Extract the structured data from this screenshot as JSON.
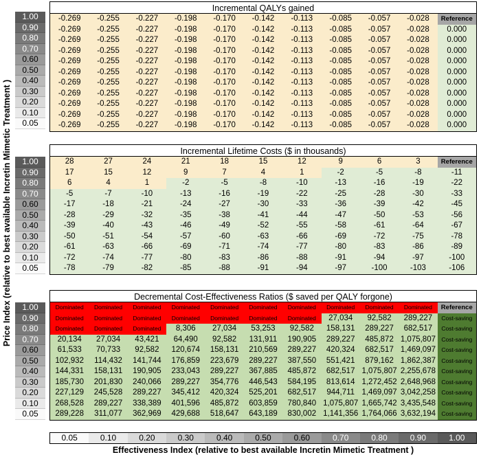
{
  "y_axis_label": "Price Index (relative to best available Incretin Mimetic Treatment )",
  "x_axis_label": "Effectiveness Index (relative to best available Incretin Mimetic Treatment )",
  "price_index": [
    "1.00",
    "0.90",
    "0.80",
    "0.70",
    "0.60",
    "0.50",
    "0.40",
    "0.30",
    "0.20",
    "0.10",
    "0.05"
  ],
  "effectiveness_index": [
    "0.05",
    "0.10",
    "0.20",
    "0.30",
    "0.40",
    "0.50",
    "0.60",
    "0.70",
    "0.80",
    "0.90",
    "1.00"
  ],
  "colors": {
    "yellow": "#fbeccb",
    "green_light": "#e0ecd5",
    "green_mid": "#c6ddb0",
    "green_dark": "#4e7b30",
    "red": "#ff0000",
    "gray": "#a6a6a6"
  },
  "chart_data": [
    {
      "type": "table",
      "title": "Incremental QALYs gained",
      "reference_label": "Reference",
      "rows": [
        [
          "-0.269",
          "-0.255",
          "-0.227",
          "-0.198",
          "-0.170",
          "-0.142",
          "-0.113",
          "-0.085",
          "-0.057",
          "-0.028",
          "Reference"
        ],
        [
          "-0.269",
          "-0.255",
          "-0.227",
          "-0.198",
          "-0.170",
          "-0.142",
          "-0.113",
          "-0.085",
          "-0.057",
          "-0.028",
          "0.000"
        ],
        [
          "-0.269",
          "-0.255",
          "-0.227",
          "-0.198",
          "-0.170",
          "-0.142",
          "-0.113",
          "-0.085",
          "-0.057",
          "-0.028",
          "0.000"
        ],
        [
          "-0.269",
          "-0.255",
          "-0.227",
          "-0.198",
          "-0.170",
          "-0.142",
          "-0.113",
          "-0.085",
          "-0.057",
          "-0.028",
          "0.000"
        ],
        [
          "-0.269",
          "-0.255",
          "-0.227",
          "-0.198",
          "-0.170",
          "-0.142",
          "-0.113",
          "-0.085",
          "-0.057",
          "-0.028",
          "0.000"
        ],
        [
          "-0.269",
          "-0.255",
          "-0.227",
          "-0.198",
          "-0.170",
          "-0.142",
          "-0.113",
          "-0.085",
          "-0.057",
          "-0.028",
          "0.000"
        ],
        [
          "-0.269",
          "-0.255",
          "-0.227",
          "-0.198",
          "-0.170",
          "-0.142",
          "-0.113",
          "-0.085",
          "-0.057",
          "-0.028",
          "0.000"
        ],
        [
          "-0.269",
          "-0.255",
          "-0.227",
          "-0.198",
          "-0.170",
          "-0.142",
          "-0.113",
          "-0.085",
          "-0.057",
          "-0.028",
          "0.000"
        ],
        [
          "-0.269",
          "-0.255",
          "-0.227",
          "-0.198",
          "-0.170",
          "-0.142",
          "-0.113",
          "-0.085",
          "-0.057",
          "-0.028",
          "0.000"
        ],
        [
          "-0.269",
          "-0.255",
          "-0.227",
          "-0.198",
          "-0.170",
          "-0.142",
          "-0.113",
          "-0.085",
          "-0.057",
          "-0.028",
          "0.000"
        ],
        [
          "-0.269",
          "-0.255",
          "-0.227",
          "-0.198",
          "-0.170",
          "-0.142",
          "-0.113",
          "-0.085",
          "-0.057",
          "-0.028",
          "0.000"
        ]
      ]
    },
    {
      "type": "table",
      "title": "Incremental Lifetime Costs ($ in thousands)",
      "reference_label": "Reference",
      "rows": [
        [
          "28",
          "27",
          "24",
          "21",
          "18",
          "15",
          "12",
          "9",
          "6",
          "3",
          "Reference"
        ],
        [
          "17",
          "15",
          "12",
          "9",
          "7",
          "4",
          "1",
          "-2",
          "-5",
          "-8",
          "-11"
        ],
        [
          "6",
          "4",
          "1",
          "-2",
          "-5",
          "-8",
          "-10",
          "-13",
          "-16",
          "-19",
          "-22"
        ],
        [
          "-5",
          "-7",
          "-10",
          "-13",
          "-16",
          "-19",
          "-22",
          "-25",
          "-28",
          "-30",
          "-33"
        ],
        [
          "-17",
          "-18",
          "-21",
          "-24",
          "-27",
          "-30",
          "-33",
          "-36",
          "-39",
          "-42",
          "-45"
        ],
        [
          "-28",
          "-29",
          "-32",
          "-35",
          "-38",
          "-41",
          "-44",
          "-47",
          "-50",
          "-53",
          "-56"
        ],
        [
          "-39",
          "-40",
          "-43",
          "-46",
          "-49",
          "-52",
          "-55",
          "-58",
          "-61",
          "-64",
          "-67"
        ],
        [
          "-50",
          "-51",
          "-54",
          "-57",
          "-60",
          "-63",
          "-66",
          "-69",
          "-72",
          "-75",
          "-78"
        ],
        [
          "-61",
          "-63",
          "-66",
          "-69",
          "-71",
          "-74",
          "-77",
          "-80",
          "-83",
          "-86",
          "-89"
        ],
        [
          "-72",
          "-74",
          "-77",
          "-80",
          "-83",
          "-86",
          "-88",
          "-91",
          "-94",
          "-97",
          "-100"
        ],
        [
          "-78",
          "-79",
          "-82",
          "-85",
          "-88",
          "-91",
          "-94",
          "-97",
          "-100",
          "-103",
          "-106"
        ]
      ]
    },
    {
      "type": "table",
      "title": "Decremental Cost-Effectiveness Ratios ($ saved per QALY forgone)",
      "reference_label": "Reference",
      "rows": [
        [
          "Dominated",
          "Dominated",
          "Dominated",
          "Dominated",
          "Dominated",
          "Dominated",
          "Dominated",
          "Dominated",
          "Dominated",
          "Dominated",
          "Reference"
        ],
        [
          "Dominated",
          "Dominated",
          "Dominated",
          "Dominated",
          "Dominated",
          "Dominated",
          "Dominated",
          "27,034",
          "92,582",
          "289,227",
          "Cost-saving"
        ],
        [
          "Dominated",
          "Dominated",
          "Dominated",
          "8,306",
          "27,034",
          "53,253",
          "92,582",
          "158,131",
          "289,227",
          "682,517",
          "Cost-saving"
        ],
        [
          "20,134",
          "27,034",
          "43,421",
          "64,490",
          "92,582",
          "131,911",
          "190,905",
          "289,227",
          "485,872",
          "1,075,807",
          "Cost-saving"
        ],
        [
          "61,533",
          "70,733",
          "92,582",
          "120,674",
          "158,131",
          "210,569",
          "289,227",
          "420,324",
          "682,517",
          "1,469,097",
          "Cost-saving"
        ],
        [
          "102,932",
          "114,432",
          "141,744",
          "176,859",
          "223,679",
          "289,227",
          "387,550",
          "551,421",
          "879,162",
          "1,862,387",
          "Cost-saving"
        ],
        [
          "144,331",
          "158,131",
          "190,905",
          "233,043",
          "289,227",
          "367,885",
          "485,872",
          "682,517",
          "1,075,807",
          "2,255,678",
          "Cost-saving"
        ],
        [
          "185,730",
          "201,830",
          "240,066",
          "289,227",
          "354,776",
          "446,543",
          "584,195",
          "813,614",
          "1,272,452",
          "2,648,968",
          "Cost-saving"
        ],
        [
          "227,129",
          "245,528",
          "289,227",
          "345,412",
          "420,324",
          "525,201",
          "682,517",
          "944,711",
          "1,469,097",
          "3,042,258",
          "Cost-saving"
        ],
        [
          "268,528",
          "289,227",
          "338,389",
          "401,596",
          "485,872",
          "603,859",
          "780,840",
          "1,075,807",
          "1,665,742",
          "3,435,548",
          "Cost-saving"
        ],
        [
          "289,228",
          "311,077",
          "362,969",
          "429,688",
          "518,647",
          "643,189",
          "830,002",
          "1,141,356",
          "1,764,066",
          "3,632,194",
          "Cost-saving"
        ]
      ]
    }
  ]
}
